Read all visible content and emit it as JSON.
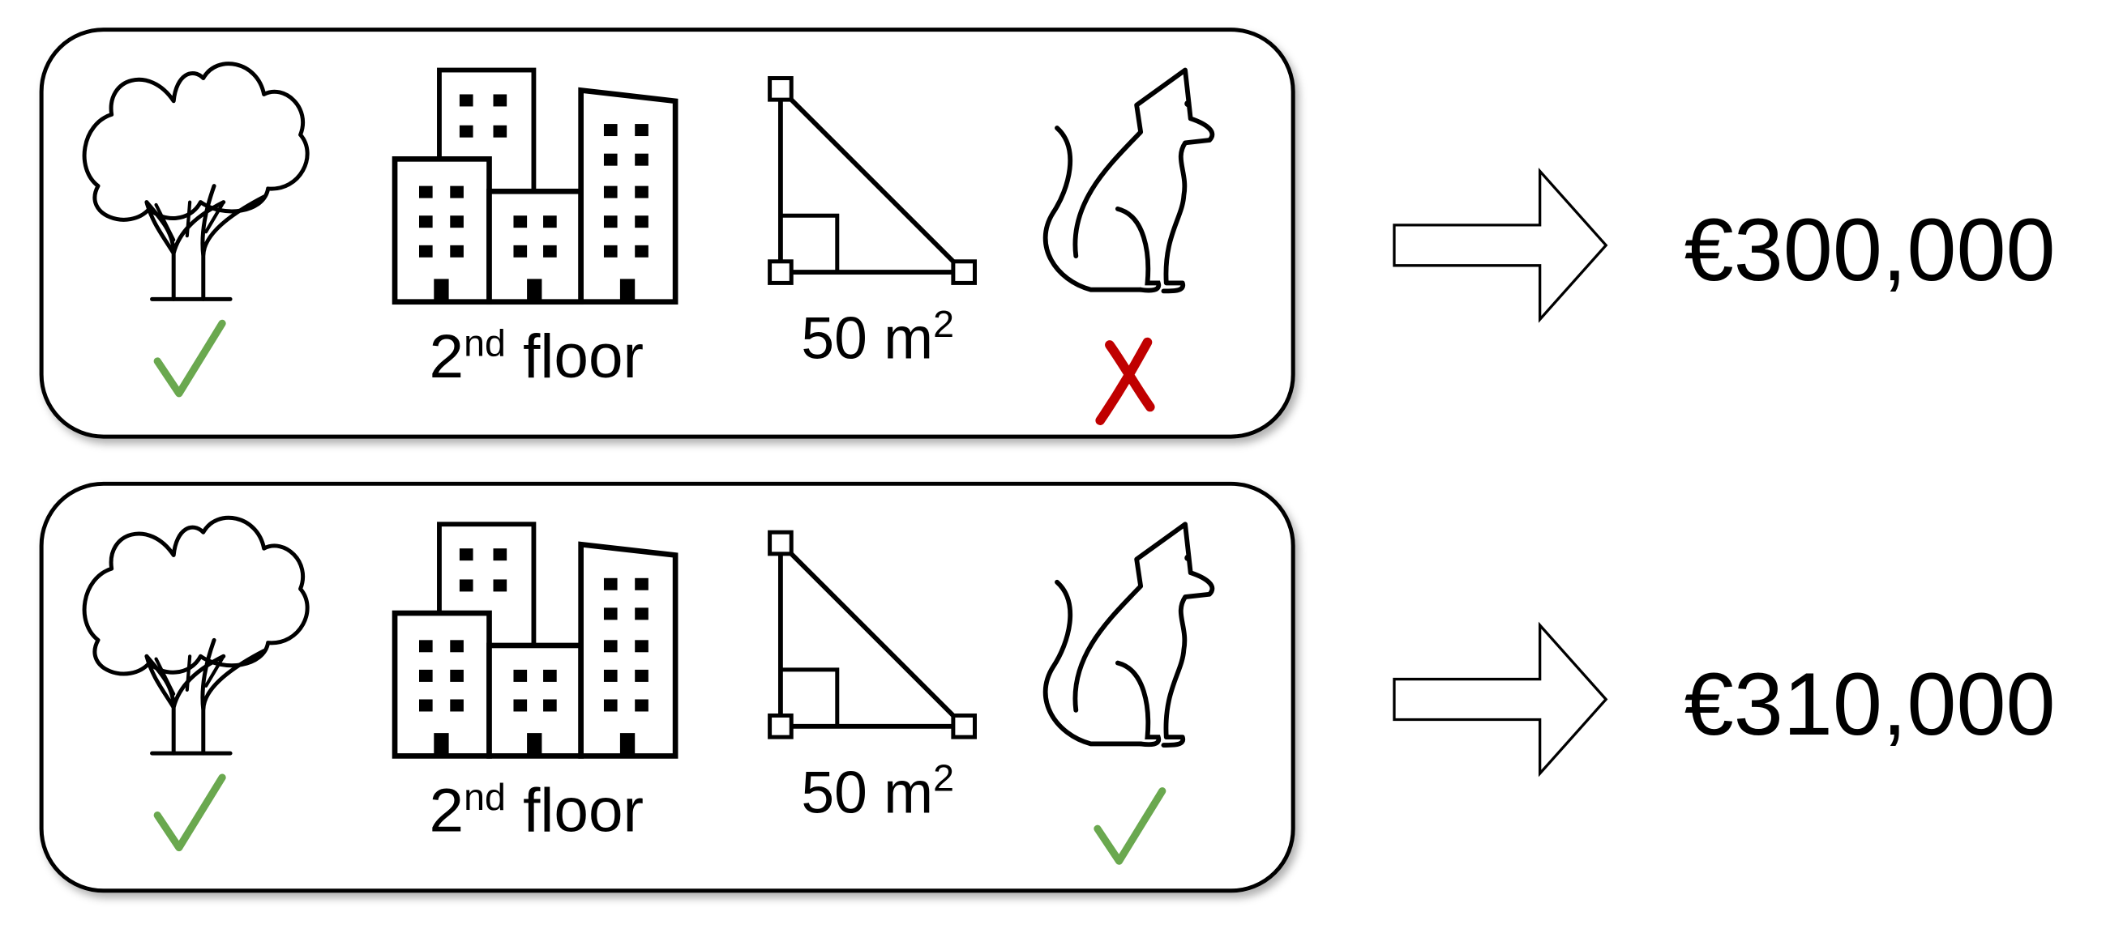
{
  "colors": {
    "check": "#6aa84f",
    "cross": "#c00000",
    "stroke": "#000000",
    "background": "#ffffff"
  },
  "rows": [
    {
      "features": [
        {
          "icon": "tree-icon",
          "status": "yes"
        },
        {
          "icon": "buildings-icon",
          "floor_number": "2",
          "floor_suffix": "nd",
          "floor_word": " floor"
        },
        {
          "icon": "area-triangle-icon",
          "area_value": "50 m",
          "area_exp": "2"
        },
        {
          "icon": "cat-icon",
          "status": "no"
        }
      ],
      "price": "€300,000"
    },
    {
      "features": [
        {
          "icon": "tree-icon",
          "status": "yes"
        },
        {
          "icon": "buildings-icon",
          "floor_number": "2",
          "floor_suffix": "nd",
          "floor_word": " floor"
        },
        {
          "icon": "area-triangle-icon",
          "area_value": "50 m",
          "area_exp": "2"
        },
        {
          "icon": "cat-icon",
          "status": "yes"
        }
      ],
      "price": "€310,000"
    }
  ]
}
